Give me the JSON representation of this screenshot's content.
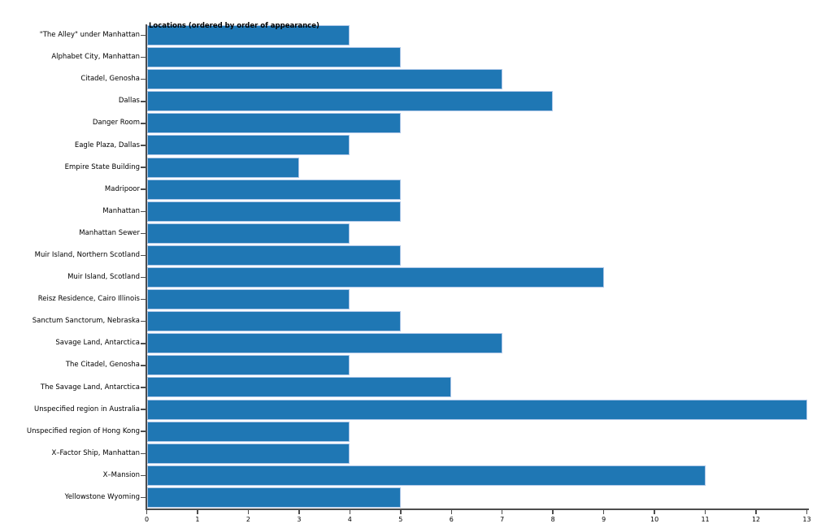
{
  "chart_data": {
    "type": "bar",
    "orientation": "horizontal",
    "title": "Locations (ordered by order of appearance)",
    "categories": [
      "\"The Alley\" under Manhattan",
      "Alphabet City, Manhattan",
      "Citadel, Genosha",
      "Dallas",
      "Danger Room",
      "Eagle Plaza, Dallas",
      "Empire State Building",
      "Madripoor",
      "Manhattan",
      "Manhattan Sewer",
      "Muir Island, Northern Scotland",
      "Muir Island, Scotland",
      "Reisz Residence, Cairo Illinois",
      "Sanctum Sanctorum, Nebraska",
      "Savage Land, Antarctica",
      "The Citadel, Genosha",
      "The Savage Land, Antarctica",
      "Unspecified region in Australia",
      "Unspecified region of Hong Kong",
      "X–Factor Ship, Manhattan",
      "X–Mansion",
      "Yellowstone Wyoming"
    ],
    "values": [
      4,
      5,
      7,
      8,
      5,
      4,
      3,
      5,
      5,
      4,
      5,
      9,
      4,
      5,
      7,
      4,
      6,
      13,
      4,
      4,
      11,
      5
    ],
    "xlabel": "",
    "ylabel": "",
    "xlim": [
      0,
      13
    ],
    "x_ticks": [
      0,
      1,
      2,
      3,
      4,
      5,
      6,
      7,
      8,
      9,
      10,
      11,
      12,
      13
    ],
    "grid": false,
    "legend": null,
    "colors": {
      "bar_fill": "#1f77b4",
      "bar_edge": "#aec7e8",
      "spine": "#4d4d4d",
      "text": "#000000",
      "background": "#ffffff"
    }
  }
}
